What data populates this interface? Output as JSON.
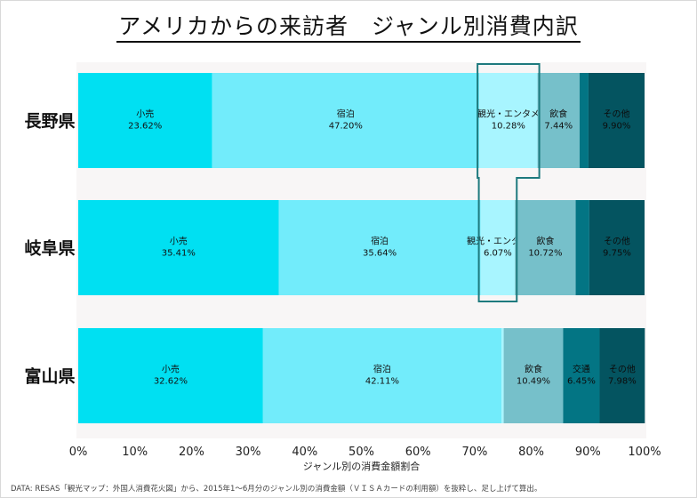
{
  "title": "アメリカからの来訪者　ジャンル別消費内訳",
  "footer": "DATA: RESAS「観光マップ：外国人消費花火図」から、2015年1〜6月分のジャンル別の消費金額（ＶＩＳＡカードの利用額）を抜粋し、足し上げて算出。",
  "colors": {
    "plot_bg": "#f8f6f6",
    "小売": "#00e0f2",
    "宿泊": "#72ecfb",
    "観光・エンタメ": "#a8f5ff",
    "飲食": "#76c0ca",
    "交通": "#037584",
    "その他": "#045460",
    "highlight": "#1e7a7e"
  },
  "chart_data": {
    "type": "stacked-bar-horizontal-100",
    "xlabel": "ジャンル別の消費金額割合",
    "xlim": [
      0,
      100
    ],
    "x_ticks": [
      "0%",
      "10%",
      "20%",
      "30%",
      "40%",
      "50%",
      "60%",
      "70%",
      "80%",
      "90%",
      "100%"
    ],
    "categories": [
      "長野県",
      "岐阜県",
      "富山県"
    ],
    "series": [
      {
        "name": "小売",
        "values": [
          23.62,
          35.41,
          32.62
        ],
        "labels": [
          "23.62%",
          "35.41%",
          "32.62%"
        ]
      },
      {
        "name": "宿泊",
        "values": [
          47.2,
          35.64,
          42.11
        ],
        "labels": [
          "47.20%",
          "35.64%",
          "42.11%"
        ]
      },
      {
        "name": "観光・エンタメ",
        "values": [
          10.28,
          6.07,
          0.4
        ],
        "labels": [
          "10.28%",
          "6.07%",
          ""
        ]
      },
      {
        "name": "飲食",
        "values": [
          7.44,
          10.72,
          10.49
        ],
        "labels": [
          "7.44%",
          "10.72%",
          "10.49%"
        ]
      },
      {
        "name": "交通",
        "values": [
          1.56,
          2.41,
          6.45
        ],
        "labels": [
          "",
          "",
          "6.45%"
        ]
      },
      {
        "name": "その他",
        "values": [
          9.9,
          9.75,
          7.98
        ],
        "labels": [
          "9.90%",
          "9.75%",
          "7.98%"
        ]
      }
    ],
    "highlight_series": "観光・エンタメ"
  }
}
